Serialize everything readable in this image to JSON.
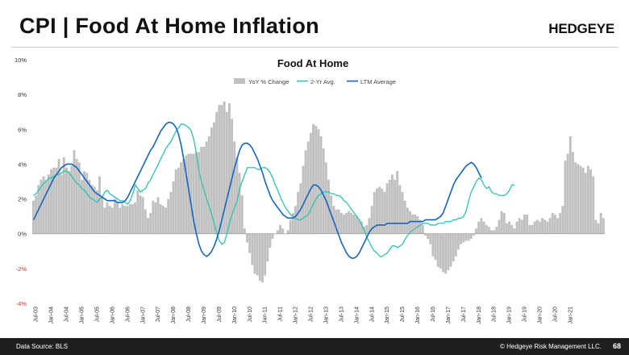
{
  "header": {
    "title": "CPI | Food At Home Inflation",
    "logo": "HEDGEYE"
  },
  "footer": {
    "source": "Data Source: BLS",
    "copyright": "© Hedgeye Risk Management LLC.",
    "page_number": "68"
  },
  "colors": {
    "bars": "#c0c0c0",
    "two_yr": "#2ec4b0",
    "ltm": "#1565c0",
    "negative_tick": "#d32f2f",
    "axis_tick": "#333333"
  },
  "chart_data": {
    "type": "bar",
    "title": "Food At Home",
    "xlabel": "",
    "ylabel": "",
    "ylim": [
      -4,
      10
    ],
    "yticks": [
      {
        "value": 10,
        "label": "10%"
      },
      {
        "value": 8,
        "label": "8%"
      },
      {
        "value": 6,
        "label": "6%"
      },
      {
        "value": 4,
        "label": "4%"
      },
      {
        "value": 2,
        "label": "2%"
      },
      {
        "value": 0,
        "label": "0%"
      },
      {
        "value": -2,
        "label": "-2%"
      },
      {
        "value": -4,
        "label": "-4%"
      }
    ],
    "xticks": [
      "Jul-03",
      "Jan-04",
      "Jul-04",
      "Jan-05",
      "Jul-05",
      "Jan-06",
      "Jul-06",
      "Jan-07",
      "Jul-07",
      "Jan-08",
      "Jul-08",
      "Jan-09",
      "Jul-09",
      "Jan-10",
      "Jul-10",
      "Jan-11",
      "Jul-11",
      "Jan-12",
      "Jul-12",
      "Jan-13",
      "Jul-13",
      "Jan-14",
      "Jul-14",
      "Jan-15",
      "Jul-15",
      "Jan-16",
      "Jul-16",
      "Jan-17",
      "Jul-17",
      "Jan-18",
      "Jul-18",
      "Jan-19",
      "Jul-19",
      "Jan-20",
      "Jul-20",
      "Jan-21"
    ],
    "x_start": "2003-06",
    "legend_position": "top-center",
    "grid": false,
    "series": [
      {
        "name": "YoY % Change",
        "type": "bar",
        "values": [
          1.9,
          2.2,
          2.8,
          3.1,
          3.3,
          3.1,
          3.4,
          3.7,
          3.8,
          3.8,
          4.3,
          3.4,
          4.4,
          3.8,
          3.6,
          3.9,
          4.8,
          4.3,
          4.1,
          3.1,
          3.6,
          3.5,
          3.1,
          2.8,
          2.7,
          2.5,
          3.3,
          2.1,
          1.5,
          1.8,
          1.6,
          1.5,
          2.0,
          1.8,
          1.5,
          1.7,
          1.6,
          1.6,
          1.7,
          1.7,
          1.8,
          2.5,
          2.2,
          2.1,
          1.4,
          0.9,
          1.2,
          1.9,
          1.8,
          2.1,
          1.7,
          1.6,
          1.5,
          2.0,
          2.4,
          3.0,
          3.7,
          3.8,
          4.1,
          4.3,
          4.5,
          4.6,
          4.6,
          4.6,
          4.7,
          4.7,
          5.0,
          5.0,
          5.3,
          5.6,
          6.1,
          6.4,
          7.0,
          7.4,
          7.4,
          7.6,
          7.0,
          7.5,
          6.6,
          5.3,
          4.4,
          3.5,
          2.2,
          0.3,
          -0.5,
          -1.1,
          -1.8,
          -2.3,
          -2.4,
          -2.7,
          -2.8,
          -2.4,
          -1.6,
          -0.8,
          -0.3,
          0.0,
          0.2,
          0.5,
          0.3,
          0.0,
          0.2,
          0.8,
          1.2,
          1.6,
          2.4,
          2.9,
          3.9,
          4.8,
          5.3,
          5.8,
          6.3,
          6.2,
          6.0,
          5.6,
          4.9,
          4.1,
          3.1,
          2.2,
          1.6,
          1.4,
          1.4,
          1.2,
          1.1,
          1.2,
          1.3,
          1.2,
          1.1,
          1.0,
          0.8,
          0.7,
          0.4,
          0.5,
          0.9,
          1.6,
          2.4,
          2.6,
          2.7,
          2.6,
          2.4,
          2.9,
          3.1,
          3.4,
          3.1,
          3.6,
          2.8,
          2.4,
          1.9,
          1.5,
          1.3,
          1.1,
          1.1,
          1.0,
          0.8,
          0.5,
          -0.1,
          -0.3,
          -0.6,
          -1.3,
          -1.5,
          -1.9,
          -2.0,
          -2.2,
          -2.3,
          -2.1,
          -1.9,
          -1.6,
          -1.3,
          -0.9,
          -0.6,
          -0.5,
          -0.4,
          -0.4,
          -0.3,
          -0.1,
          0.3,
          0.7,
          0.9,
          0.7,
          0.5,
          0.4,
          0.2,
          0.2,
          0.4,
          0.8,
          1.3,
          1.2,
          0.6,
          0.7,
          0.5,
          0.3,
          0.7,
          0.9,
          0.8,
          1.1,
          1.1,
          0.5,
          0.5,
          0.7,
          0.8,
          0.7,
          0.9,
          0.8,
          0.7,
          0.9,
          1.2,
          1.1,
          0.9,
          1.2,
          1.6,
          4.2,
          4.6,
          5.6,
          4.7,
          4.1,
          4.0,
          3.9,
          3.8,
          3.5,
          3.9,
          3.7,
          3.3,
          0.8,
          0.6,
          1.2,
          0.9
        ]
      },
      {
        "name": "2-Yr Avg.",
        "type": "line",
        "values": [
          2.2,
          2.3,
          2.5,
          2.7,
          2.9,
          3.0,
          3.2,
          3.2,
          3.3,
          3.4,
          3.4,
          3.5,
          3.6,
          3.6,
          3.5,
          3.3,
          3.1,
          2.9,
          2.8,
          2.6,
          2.5,
          2.3,
          2.1,
          2.0,
          1.9,
          1.8,
          2.0,
          2.1,
          2.4,
          2.5,
          2.3,
          2.2,
          2.1,
          2.0,
          1.9,
          1.9,
          1.8,
          1.7,
          1.9,
          2.3,
          2.8,
          2.6,
          2.4,
          2.5,
          2.6,
          2.9,
          3.1,
          3.4,
          3.7,
          4.0,
          4.3,
          4.6,
          4.9,
          5.1,
          5.3,
          5.6,
          5.9,
          6.1,
          6.3,
          6.3,
          6.2,
          6.1,
          5.9,
          5.4,
          4.6,
          3.6,
          3.0,
          2.5,
          2.0,
          1.6,
          1.1,
          0.6,
          0.0,
          -0.4,
          -0.6,
          -0.5,
          0.0,
          0.6,
          1.1,
          1.5,
          1.9,
          2.6,
          3.0,
          3.4,
          3.8,
          3.8,
          3.8,
          3.8,
          3.7,
          3.7,
          3.8,
          3.8,
          3.7,
          3.5,
          3.2,
          2.8,
          2.5,
          2.1,
          1.8,
          1.5,
          1.3,
          1.1,
          1.0,
          0.9,
          0.8,
          0.8,
          0.9,
          1.0,
          1.1,
          1.4,
          1.7,
          2.0,
          2.2,
          2.3,
          2.4,
          2.4,
          2.4,
          2.3,
          2.3,
          2.2,
          2.2,
          2.1,
          1.9,
          1.8,
          1.6,
          1.4,
          1.2,
          1.0,
          0.8,
          0.5,
          0.2,
          -0.2,
          -0.5,
          -0.8,
          -1.0,
          -1.1,
          -1.3,
          -1.3,
          -1.2,
          -1.1,
          -0.9,
          -0.7,
          -0.7,
          -0.8,
          -0.7,
          -0.6,
          -0.3,
          -0.1,
          0.1,
          0.2,
          0.3,
          0.4,
          0.5,
          0.6,
          0.6,
          0.6,
          0.5,
          0.5,
          0.5,
          0.6,
          0.6,
          0.6,
          0.7,
          0.7,
          0.7,
          0.8,
          0.8,
          0.9,
          0.9,
          1.0,
          1.3,
          1.9,
          2.4,
          2.7,
          3.0,
          3.2,
          3.1,
          2.8,
          2.6,
          2.7,
          2.4,
          2.3,
          2.3,
          2.2,
          2.2,
          2.2,
          2.3,
          2.5,
          2.8,
          2.8
        ]
      },
      {
        "name": "LTM Average",
        "type": "line",
        "values": [
          0.8,
          1.1,
          1.4,
          1.7,
          2.0,
          2.3,
          2.6,
          2.9,
          3.2,
          3.4,
          3.6,
          3.8,
          3.9,
          4.0,
          4.0,
          4.0,
          3.9,
          3.8,
          3.6,
          3.4,
          3.2,
          3.0,
          2.8,
          2.6,
          2.4,
          2.3,
          2.2,
          2.1,
          2.0,
          1.9,
          1.9,
          1.9,
          1.9,
          1.8,
          1.8,
          1.8,
          1.9,
          2.1,
          2.4,
          2.7,
          3.0,
          3.3,
          3.6,
          3.9,
          4.2,
          4.5,
          4.8,
          5.0,
          5.3,
          5.6,
          5.9,
          6.1,
          6.3,
          6.4,
          6.4,
          6.3,
          6.1,
          5.7,
          5.1,
          4.3,
          3.4,
          2.5,
          1.6,
          0.7,
          0.0,
          -0.6,
          -1.0,
          -1.2,
          -1.3,
          -1.2,
          -1.0,
          -0.7,
          -0.3,
          0.2,
          0.8,
          1.4,
          2.0,
          2.6,
          3.2,
          3.8,
          4.3,
          4.8,
          5.1,
          5.2,
          5.2,
          5.1,
          4.9,
          4.6,
          4.3,
          3.9,
          3.5,
          3.0,
          2.6,
          2.2,
          1.9,
          1.7,
          1.5,
          1.3,
          1.1,
          1.0,
          0.9,
          0.9,
          0.9,
          1.0,
          1.2,
          1.4,
          1.7,
          2.0,
          2.3,
          2.6,
          2.8,
          2.8,
          2.7,
          2.5,
          2.2,
          1.9,
          1.5,
          1.1,
          0.7,
          0.3,
          -0.1,
          -0.5,
          -0.8,
          -1.1,
          -1.3,
          -1.4,
          -1.4,
          -1.3,
          -1.1,
          -0.8,
          -0.5,
          -0.2,
          0.1,
          0.3,
          0.4,
          0.5,
          0.5,
          0.5,
          0.5,
          0.6,
          0.6,
          0.6,
          0.6,
          0.6,
          0.6,
          0.6,
          0.6,
          0.6,
          0.7,
          0.7,
          0.7,
          0.7,
          0.7,
          0.7,
          0.8,
          0.8,
          0.8,
          0.8,
          0.8,
          0.9,
          1.0,
          1.2,
          1.6,
          2.0,
          2.4,
          2.8,
          3.1,
          3.3,
          3.5,
          3.7,
          3.9,
          4.0,
          4.1,
          4.0,
          3.8,
          3.5,
          3.2
        ]
      }
    ]
  }
}
